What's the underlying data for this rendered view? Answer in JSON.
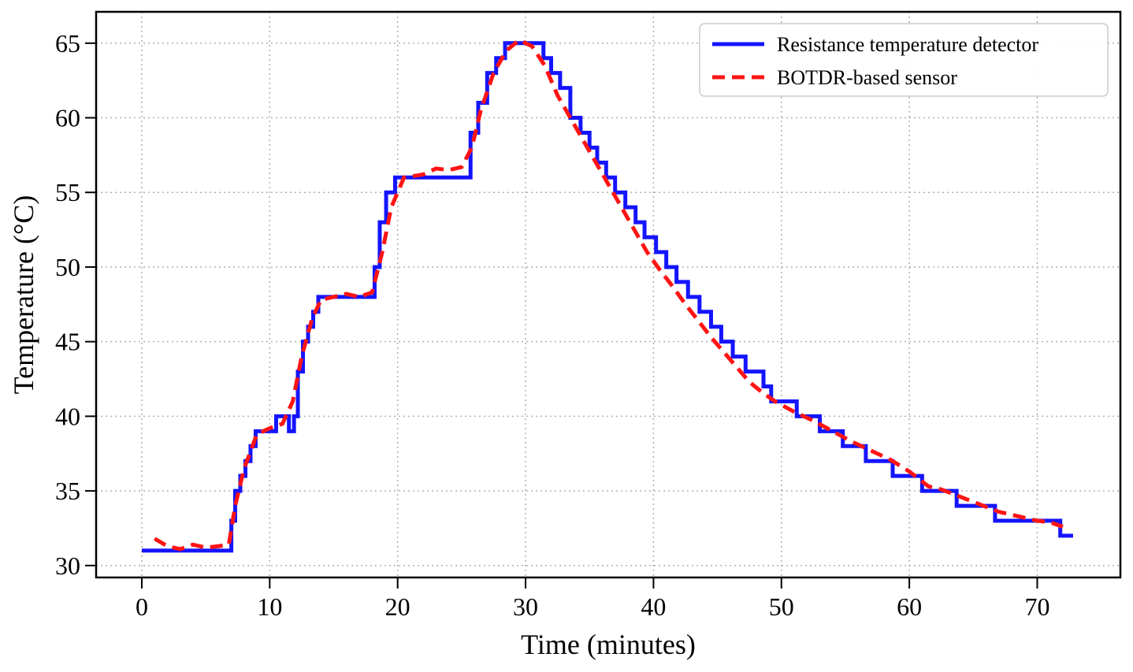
{
  "chart_data": {
    "type": "line",
    "xlabel": "Time (minutes)",
    "ylabel": "Temperature (°C)",
    "xlim": [
      -3.57,
      76.5
    ],
    "ylim": [
      29.2,
      67.1
    ],
    "xticks": [
      0,
      10,
      20,
      30,
      40,
      50,
      60,
      70
    ],
    "yticks": [
      30,
      35,
      40,
      45,
      50,
      55,
      60,
      65
    ],
    "grid": true,
    "legend": "upper right",
    "series": [
      {
        "name": "Resistance temperature detector",
        "color": "#1414ff",
        "linestyle": "solid",
        "drawstyle": "steps-post",
        "x": [
          0,
          7,
          7.3,
          7.7,
          8.1,
          8.5,
          8.9,
          10.5,
          11.5,
          11.9,
          12.2,
          12.6,
          13,
          13.4,
          13.8,
          18.2,
          18.6,
          19.1,
          19.8,
          25.7,
          26.3,
          27,
          27.7,
          28.4,
          31.4,
          32,
          32.7,
          33.5,
          34.3,
          35,
          35.6,
          36.3,
          37,
          37.8,
          38.6,
          39.3,
          40.2,
          41,
          41.8,
          42.7,
          43.6,
          44.5,
          45.3,
          46.2,
          47.2,
          48.6,
          49.2,
          51.2,
          53,
          54.8,
          56.6,
          58.7,
          61,
          63.7,
          66.7,
          71.8,
          72.8
        ],
        "values": [
          31,
          33,
          35,
          36,
          37,
          38,
          39,
          40,
          39,
          40,
          43,
          45,
          46,
          47,
          48,
          50,
          53,
          55,
          56,
          59,
          61,
          63,
          64,
          65,
          64,
          63,
          62,
          60,
          59,
          58,
          57,
          56,
          55,
          54,
          53,
          52,
          51,
          50,
          49,
          48,
          47,
          46,
          45,
          44,
          43,
          42,
          41,
          40,
          39,
          38,
          37,
          36,
          35,
          34,
          33,
          32,
          32
        ]
      },
      {
        "name": "BOTDR-based sensor",
        "color": "#ff1414",
        "linestyle": "dashed",
        "drawstyle": "default",
        "x": [
          1,
          2,
          3,
          4,
          5,
          6,
          6.8,
          7.3,
          8,
          9,
          10,
          11,
          11.8,
          12.5,
          13.3,
          14,
          15,
          16,
          17,
          18,
          18.8,
          19.5,
          20.5,
          22,
          23,
          24,
          25,
          25.8,
          26.5,
          27.5,
          28.5,
          29.5,
          30.5,
          31.5,
          32.5,
          33.5,
          34.5,
          35.5,
          36.5,
          37.5,
          38.5,
          39.5,
          40.5,
          41.5,
          42.5,
          43.5,
          44.5,
          45.5,
          46.5,
          47.5,
          48.5,
          49.5,
          51,
          52.5,
          54,
          55.5,
          57,
          58.5,
          60,
          61.5,
          62.5,
          64,
          65.5,
          67,
          68.5,
          70,
          71,
          72
        ],
        "values": [
          31.8,
          31.3,
          31.1,
          31.4,
          31.2,
          31.3,
          31.4,
          34,
          36.5,
          38.8,
          39.2,
          39.5,
          41,
          44,
          46.5,
          47.8,
          48,
          48.2,
          48,
          48.3,
          51,
          54,
          56,
          56.2,
          56.6,
          56.5,
          56.7,
          58,
          60.5,
          63,
          64.5,
          65.2,
          64.8,
          63.5,
          61.5,
          60,
          58.5,
          57,
          55.5,
          54,
          52.5,
          51,
          49.8,
          48.7,
          47.5,
          46.4,
          45.3,
          44.3,
          43.3,
          42.3,
          41.6,
          41,
          40.3,
          39.7,
          39,
          38.3,
          37.7,
          37.1,
          36.3,
          35.3,
          35.1,
          34.6,
          34.1,
          33.6,
          33.3,
          33,
          32.9,
          32.6
        ]
      }
    ]
  }
}
